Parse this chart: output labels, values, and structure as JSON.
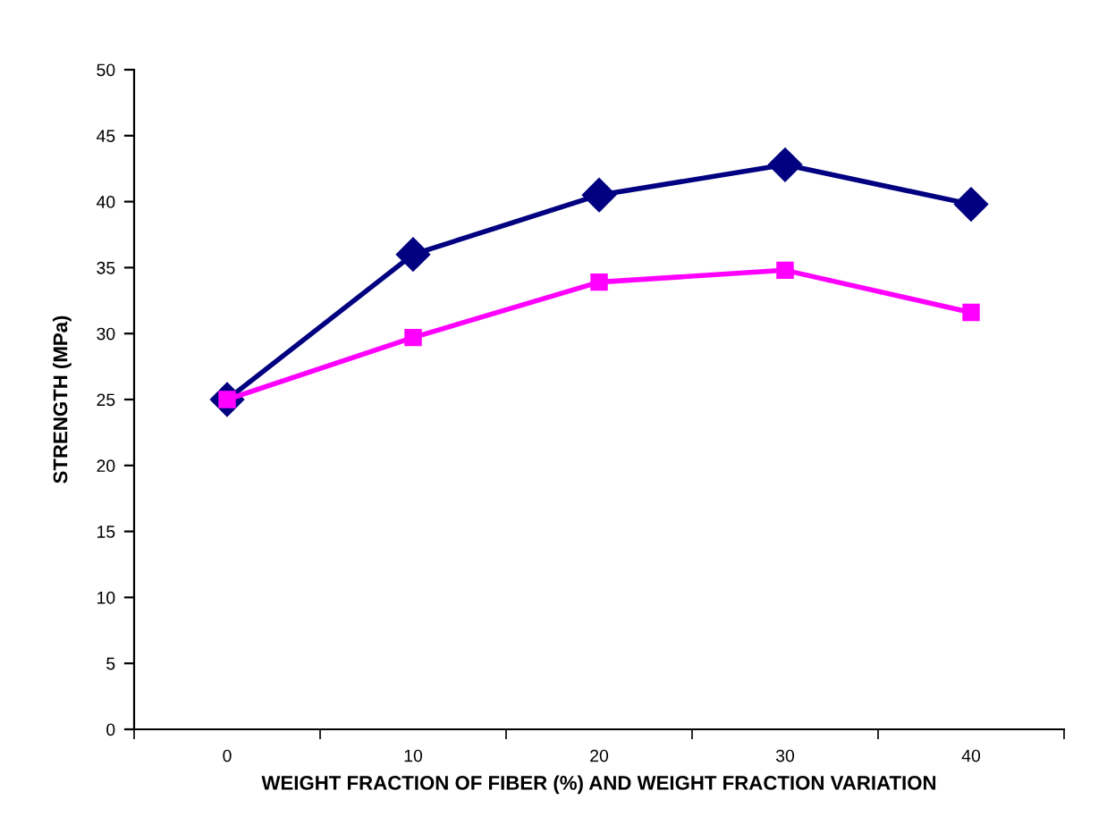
{
  "chart_data": {
    "type": "line",
    "xlabel": "WEIGHT FRACTION OF FIBER (%) AND WEIGHT FRACTION VARIATION",
    "ylabel": "STRENGTH (MPa)",
    "categories": [
      "0",
      "10",
      "20",
      "30",
      "40"
    ],
    "series": [
      {
        "color": "#000080",
        "marker": "diamond",
        "values": [
          25,
          36,
          40.5,
          42.8,
          39.8
        ]
      },
      {
        "color": "#ff00ff",
        "marker": "square",
        "values": [
          25,
          29.7,
          33.9,
          34.8,
          31.6
        ]
      }
    ],
    "ylim": [
      0,
      50
    ],
    "yticks": [
      0,
      5,
      10,
      15,
      20,
      25,
      30,
      35,
      40,
      45,
      50
    ],
    "grid": false,
    "legend": false,
    "line_style": "solid"
  }
}
